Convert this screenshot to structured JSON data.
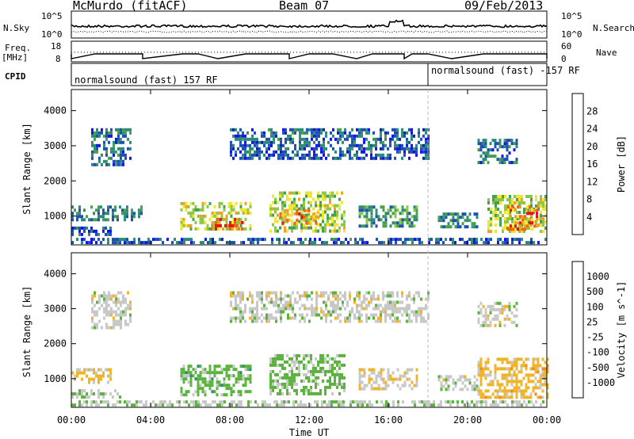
{
  "header": {
    "station": "McMurdo (fitACF)",
    "beam": "Beam 07",
    "date": "09/Feb/2013"
  },
  "top_panels": {
    "nsky_label": "N.Sky",
    "nsearch_label": "N.Search",
    "freq_label_1": "Freq.",
    "freq_label_2": "[MHz]",
    "nave_label": "Nave",
    "cpid_label": "CPID",
    "noise_left_ticks": [
      "10^5",
      "10^0"
    ],
    "noise_right_ticks": [
      "10^5",
      "10^0"
    ],
    "freq_ticks": [
      "18",
      "8"
    ],
    "nave_ticks": [
      "60",
      "0"
    ],
    "cpid_segments": [
      {
        "label": "normalsound (fast) 157 RF",
        "start_hour": 0,
        "end_hour": 18
      },
      {
        "label": "normalsound (fast) -157 RF",
        "start_hour": 18,
        "end_hour": 24
      }
    ]
  },
  "colors": {
    "power_scale": [
      "#1414e6",
      "#1e50b4",
      "#2d8c78",
      "#46a050",
      "#8cc846",
      "#f0e632",
      "#f0a028",
      "#f06414",
      "#e61414"
    ],
    "velocity_scale": [
      "#1e28d2",
      "#1e50b4",
      "#2d8c78",
      "#5ab43c",
      "#c8c8c8",
      "#f0b428",
      "#f08c1e",
      "#f05a14",
      "#e61414"
    ]
  },
  "chart_data": [
    {
      "type": "heatmap",
      "title": "Power",
      "xlabel": "Time UT",
      "ylabel": "Slant Range [km]",
      "x_ticks": [
        "00:00",
        "04:00",
        "08:00",
        "12:00",
        "16:00",
        "20:00",
        "00:00"
      ],
      "x_range_hours": [
        0,
        24
      ],
      "y_ticks": [
        1000,
        2000,
        3000,
        4000
      ],
      "ylim": [
        180,
        4600
      ],
      "colorbar": {
        "label": "Power [dB]",
        "ticks": [
          "28",
          "24",
          "20",
          "16",
          "12",
          "8",
          "4"
        ],
        "range": [
          0,
          32
        ]
      },
      "echo_regions": [
        {
          "t0": 0.0,
          "t1": 2.0,
          "r0": 450,
          "r1": 700,
          "value": 4
        },
        {
          "t0": 0.0,
          "t1": 3.5,
          "r0": 850,
          "r1": 1300,
          "value": 9
        },
        {
          "t0": 1.0,
          "t1": 3.0,
          "r0": 2500,
          "r1": 3500,
          "value": 7
        },
        {
          "t0": 5.5,
          "t1": 9.0,
          "r0": 600,
          "r1": 1400,
          "value": 18
        },
        {
          "t0": 7.0,
          "t1": 8.6,
          "r0": 600,
          "r1": 950,
          "value": 27
        },
        {
          "t0": 10.0,
          "t1": 13.8,
          "r0": 600,
          "r1": 1700,
          "value": 17
        },
        {
          "t0": 10.5,
          "t1": 12.5,
          "r0": 750,
          "r1": 1200,
          "value": 24
        },
        {
          "t0": 14.5,
          "t1": 17.5,
          "r0": 750,
          "r1": 1300,
          "value": 11
        },
        {
          "t0": 18.5,
          "t1": 20.5,
          "r0": 700,
          "r1": 1100,
          "value": 9
        },
        {
          "t0": 21.0,
          "t1": 24.0,
          "r0": 600,
          "r1": 1600,
          "value": 17
        },
        {
          "t0": 22.0,
          "t1": 23.5,
          "r0": 650,
          "r1": 1300,
          "value": 25
        },
        {
          "t0": 8.0,
          "t1": 18.0,
          "r0": 2600,
          "r1": 3500,
          "value": 6
        },
        {
          "t0": 20.5,
          "t1": 22.5,
          "r0": 2500,
          "r1": 3200,
          "value": 8
        },
        {
          "t0": 0.0,
          "t1": 24.0,
          "r0": 200,
          "r1": 380,
          "value": 6
        }
      ]
    },
    {
      "type": "heatmap",
      "title": "Velocity",
      "xlabel": "Time UT",
      "ylabel": "Slant Range [km]",
      "x_ticks": [
        "00:00",
        "04:00",
        "08:00",
        "12:00",
        "16:00",
        "20:00",
        "00:00"
      ],
      "x_range_hours": [
        0,
        24
      ],
      "y_ticks": [
        1000,
        2000,
        3000,
        4000
      ],
      "ylim": [
        180,
        4600
      ],
      "colorbar": {
        "label": "Velocity [m s^-1]",
        "ticks": [
          "1000",
          "500",
          "100",
          "25",
          "-25",
          "-100",
          "-500",
          "-1000"
        ],
        "range": [
          -1000,
          1000
        ]
      },
      "echo_regions": [
        {
          "t0": 0.0,
          "t1": 2.5,
          "r0": 450,
          "r1": 700,
          "value": 80
        },
        {
          "t0": 0.0,
          "t1": 2.0,
          "r0": 900,
          "r1": 1300,
          "value": -150
        },
        {
          "t0": 1.0,
          "t1": 3.0,
          "r0": 2500,
          "r1": 3500,
          "value": 0
        },
        {
          "t0": 5.5,
          "t1": 9.0,
          "r0": 500,
          "r1": 1400,
          "value": 200
        },
        {
          "t0": 10.0,
          "t1": 13.8,
          "r0": 600,
          "r1": 1700,
          "value": 180
        },
        {
          "t0": 14.5,
          "t1": 17.5,
          "r0": 700,
          "r1": 1300,
          "value": -60
        },
        {
          "t0": 18.5,
          "t1": 20.5,
          "r0": 650,
          "r1": 1100,
          "value": 0
        },
        {
          "t0": 20.5,
          "t1": 24.0,
          "r0": 500,
          "r1": 1600,
          "value": -200
        },
        {
          "t0": 8.0,
          "t1": 18.0,
          "r0": 2600,
          "r1": 3500,
          "value": 0
        },
        {
          "t0": 20.5,
          "t1": 22.5,
          "r0": 2500,
          "r1": 3200,
          "value": 0
        },
        {
          "t0": 0.0,
          "t1": 24.0,
          "r0": 200,
          "r1": 380,
          "value": 50
        }
      ]
    }
  ]
}
